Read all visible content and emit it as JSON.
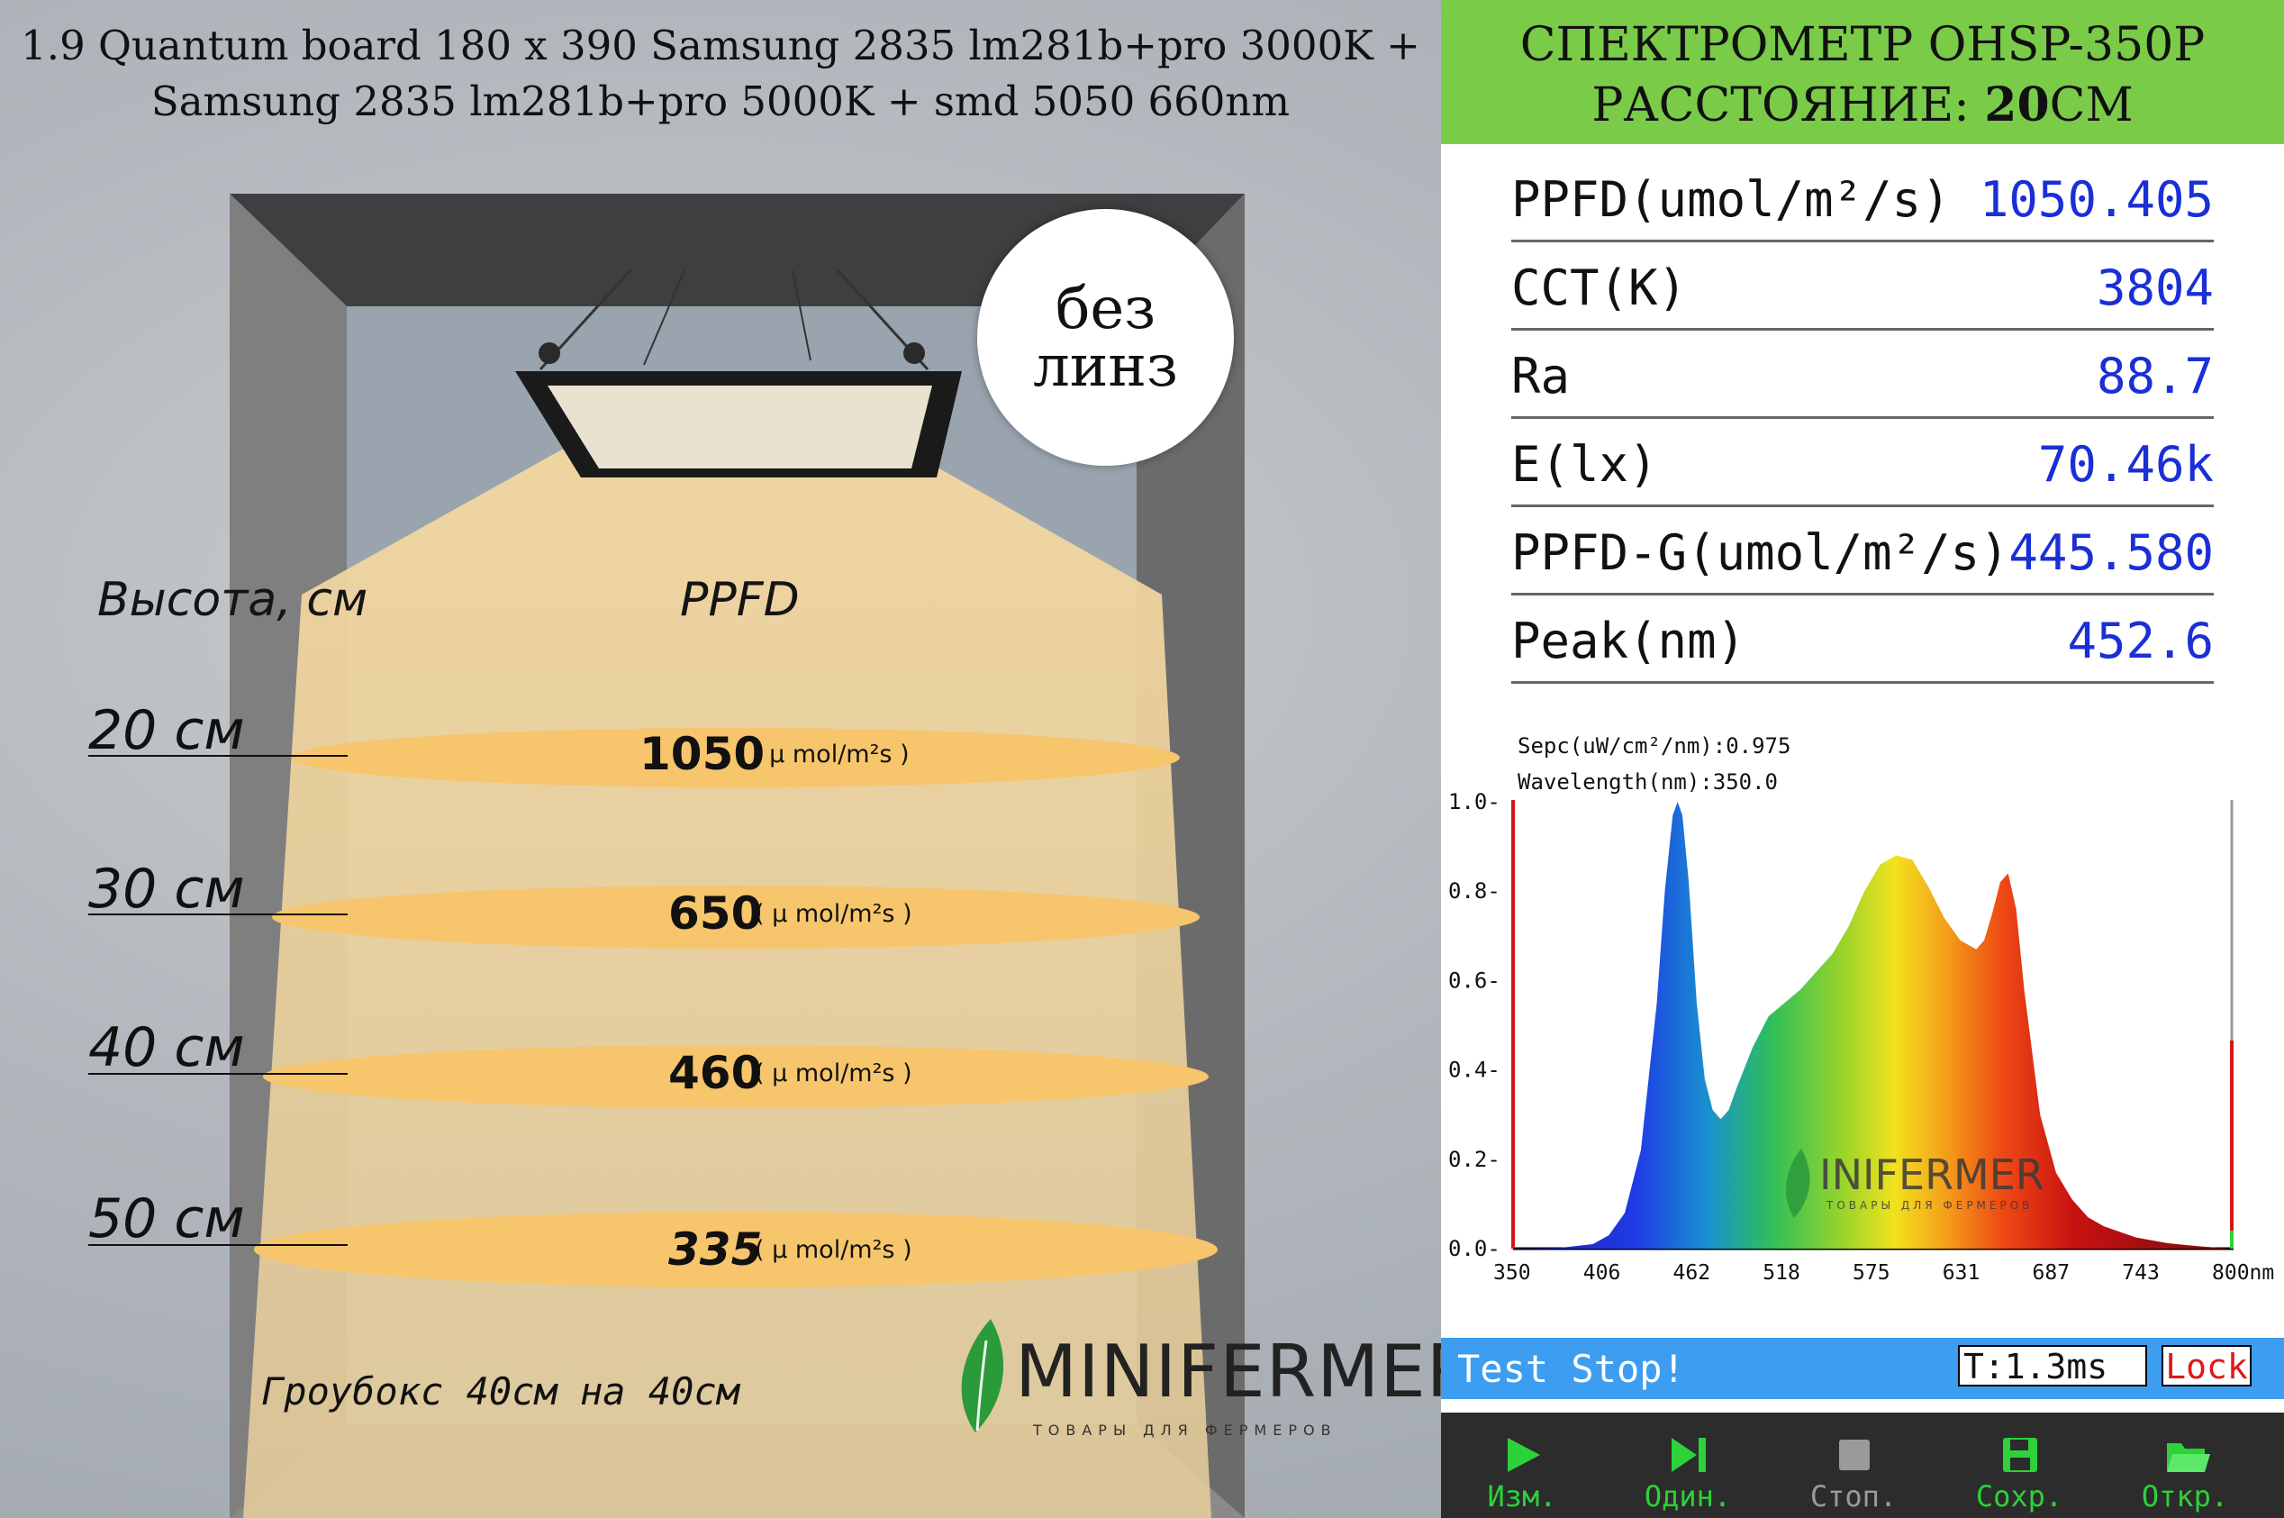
{
  "product_title": {
    "line1": "1.9 Quantum board 180 x 390 Samsung 2835 lm281b+pro 3000K +",
    "line2": "Samsung 2835 lm281b+pro 5000K + smd 5050 660nm"
  },
  "lens_badge": {
    "line1": "без",
    "line2": "линз"
  },
  "headers": {
    "height": "Высота, см",
    "ppfd": "PPFD"
  },
  "measurements": [
    {
      "height": "20 см",
      "ppfd": "1050",
      "unit": "( μ mol/m²s )"
    },
    {
      "height": "30 см",
      "ppfd": "650",
      "unit": "( μ mol/m²s )"
    },
    {
      "height": "40 см",
      "ppfd": "460",
      "unit": "( μ mol/m²s )"
    },
    {
      "height": "50 см",
      "ppfd": "335",
      "unit": "( μ mol/m²s )"
    }
  ],
  "growbox_caption": "Гроубокс 40см на 40см",
  "brand": {
    "word_m": "M",
    "word_ini": "INI",
    "word_fermer": "FERMER",
    "tagline": "ТОВАРЫ ДЛЯ ФЕРМЕРОВ",
    "leaf_color": "#2a9a3b"
  },
  "spectrometer": {
    "title": "СПЕКТРОМЕТР OHSP-350P",
    "distance_label": "РАССТОЯНИЕ:",
    "distance_value": "20",
    "distance_unit": "СМ",
    "header_color": "#7acc48",
    "readings": [
      {
        "key": "PPFD(umol/m²/s)",
        "value": "1050.405"
      },
      {
        "key": "CCT(K)",
        "value": "3804"
      },
      {
        "key": "Ra",
        "value": "88.7"
      },
      {
        "key": "E(lx)",
        "value": "70.46k"
      },
      {
        "key": "PPFD-G(umol/m²/s)",
        "value": "445.580"
      },
      {
        "key": "Peak(nm)",
        "value": "452.6"
      }
    ],
    "value_color": "#1a2fd6",
    "status": "Test Stop!",
    "time": "T:1.3ms",
    "lock": "Lock",
    "toolbar": [
      {
        "icon": "play-icon",
        "label": "Изм.",
        "color": "#2dd13a"
      },
      {
        "icon": "next-icon",
        "label": "Один.",
        "color": "#2dd13a"
      },
      {
        "icon": "stop-icon",
        "label": "Стоп.",
        "color": "#9a9a9a"
      },
      {
        "icon": "save-icon",
        "label": "Сохр.",
        "color": "#2dd13a"
      },
      {
        "icon": "open-folder-icon",
        "label": "Откр.",
        "color": "#2dd13a"
      }
    ]
  },
  "chart_data": {
    "type": "area",
    "annotation_spec": "Sepc(uW/cm²/nm):0.975",
    "annotation_wavelength": "Wavelength(nm):350.0",
    "x_tick_labels": [
      "350",
      "406",
      "462",
      "518",
      "575",
      "631",
      "687",
      "743",
      "800nm"
    ],
    "y_tick_labels": [
      "1.0",
      "0.8",
      "0.6",
      "0.4",
      "0.2",
      "0.0"
    ],
    "xlim": [
      350,
      800
    ],
    "ylim": [
      0,
      1.0
    ],
    "x": [
      350,
      380,
      400,
      410,
      420,
      430,
      440,
      445,
      450,
      453,
      456,
      460,
      465,
      470,
      475,
      480,
      485,
      490,
      500,
      510,
      520,
      530,
      540,
      550,
      560,
      570,
      580,
      590,
      600,
      610,
      620,
      630,
      640,
      645,
      650,
      655,
      660,
      665,
      670,
      680,
      690,
      700,
      710,
      720,
      740,
      760,
      780,
      800
    ],
    "y": [
      0.0,
      0.002,
      0.01,
      0.03,
      0.08,
      0.22,
      0.55,
      0.8,
      0.97,
      1.0,
      0.97,
      0.82,
      0.55,
      0.38,
      0.31,
      0.29,
      0.31,
      0.36,
      0.45,
      0.52,
      0.55,
      0.58,
      0.62,
      0.66,
      0.72,
      0.8,
      0.86,
      0.88,
      0.87,
      0.81,
      0.74,
      0.69,
      0.67,
      0.69,
      0.75,
      0.82,
      0.84,
      0.76,
      0.58,
      0.3,
      0.17,
      0.11,
      0.07,
      0.05,
      0.025,
      0.012,
      0.005,
      0.0
    ]
  }
}
